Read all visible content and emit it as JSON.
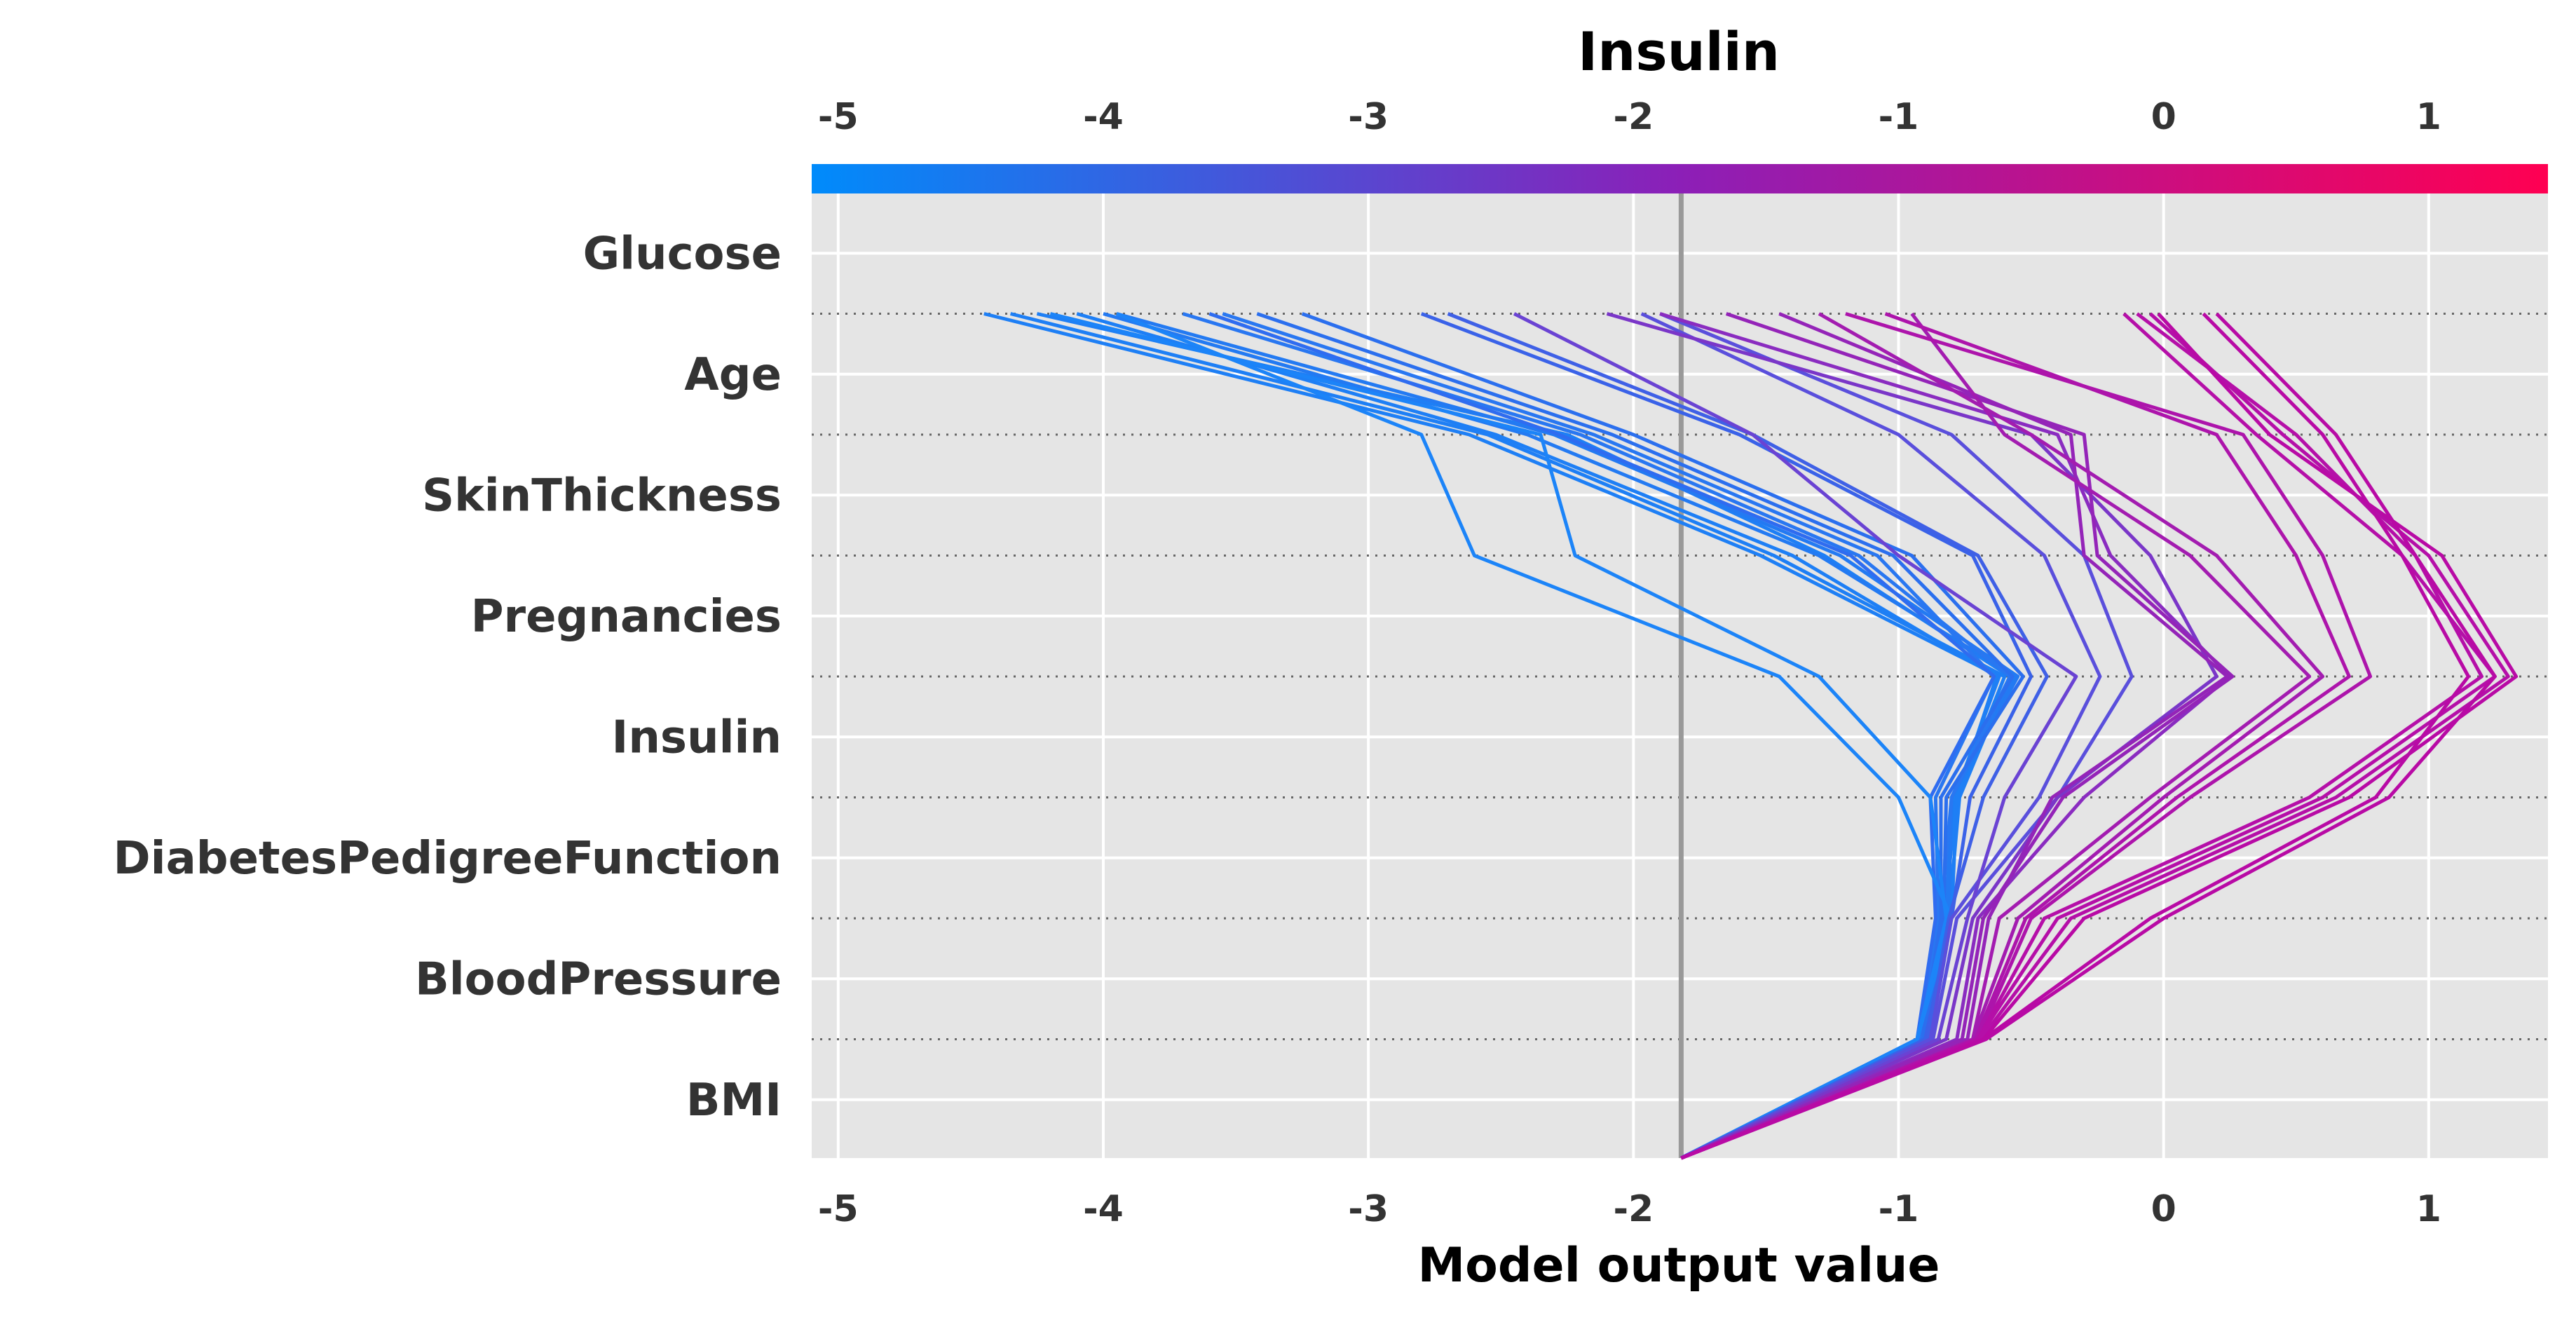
{
  "chart_data": {
    "type": "line",
    "subtype": "decision_plot",
    "title": "Insulin",
    "xlabel": "Model output value",
    "features": [
      "Glucose",
      "Age",
      "SkinThickness",
      "Pregnancies",
      "Insulin",
      "DiabetesPedigreeFunction",
      "BloodPressure",
      "BMI"
    ],
    "xlim": [
      -5.1,
      1.45
    ],
    "xticks": [
      -5,
      -4,
      -3,
      -2,
      -1,
      0,
      1
    ],
    "base_value": -1.82,
    "grid": true,
    "colormap": {
      "low": "#008bfb",
      "mid": "#8c1fb7",
      "high": "#ff0052"
    },
    "series": [
      {
        "color": "#1e7ff5",
        "values": [
          -1.82,
          -0.93,
          -0.8,
          -0.78,
          -0.6,
          -1.47,
          -2.55,
          -4.35
        ]
      },
      {
        "color": "#1e7ff5",
        "values": [
          -1.82,
          -0.93,
          -0.82,
          -0.79,
          -0.62,
          -1.52,
          -2.62,
          -4.45
        ]
      },
      {
        "color": "#1e7ff5",
        "values": [
          -1.82,
          -0.92,
          -0.81,
          -0.77,
          -0.58,
          -1.28,
          -2.25,
          -4.25
        ]
      },
      {
        "color": "#1e7ff5",
        "values": [
          -1.82,
          -0.92,
          -0.83,
          -0.78,
          -0.63,
          -1.4,
          -2.52,
          -4.1
        ]
      },
      {
        "color": "#237af2",
        "values": [
          -1.82,
          -0.91,
          -0.81,
          -0.8,
          -0.56,
          -1.3,
          -2.4,
          -4.0
        ]
      },
      {
        "color": "#237af2",
        "values": [
          -1.82,
          -0.91,
          -0.82,
          -0.8,
          -0.55,
          -1.22,
          -2.3,
          -3.95
        ]
      },
      {
        "color": "#2977f1",
        "values": [
          -1.82,
          -0.9,
          -0.84,
          -0.8,
          -0.58,
          -1.15,
          -2.2,
          -3.7
        ]
      },
      {
        "color": "#2977f1",
        "values": [
          -1.82,
          -0.92,
          -0.85,
          -0.86,
          -0.64,
          -1.08,
          -2.15,
          -3.55
        ]
      },
      {
        "color": "#2b6fee",
        "values": [
          -1.82,
          -0.9,
          -0.83,
          -0.82,
          -0.53,
          -0.95,
          -2.0,
          -3.25
        ]
      },
      {
        "color": "#2b6fee",
        "values": [
          -1.82,
          -0.91,
          -0.84,
          -0.84,
          -0.57,
          -1.02,
          -2.08,
          -3.42
        ]
      },
      {
        "color": "#2f6cf0",
        "values": [
          -1.82,
          -0.93,
          -0.86,
          -0.88,
          -0.64,
          -1.18,
          -2.28,
          -3.6
        ]
      },
      {
        "color": "#1c84f8",
        "values": [
          -1.82,
          -0.93,
          -0.8,
          -1.0,
          -1.45,
          -2.6,
          -2.8,
          -3.95
        ]
      },
      {
        "color": "#1c84f8",
        "values": [
          -1.82,
          -0.93,
          -0.82,
          -0.88,
          -1.3,
          -2.22,
          -2.35,
          -4.2
        ]
      },
      {
        "color": "#3a62e8",
        "values": [
          -1.82,
          -0.9,
          -0.8,
          -0.73,
          -0.5,
          -0.72,
          -1.6,
          -2.8
        ]
      },
      {
        "color": "#3f60e6",
        "values": [
          -1.82,
          -0.89,
          -0.81,
          -0.68,
          -0.44,
          -0.7,
          -1.55,
          -2.7
        ]
      },
      {
        "color": "#5a4fdc",
        "values": [
          -1.82,
          -0.88,
          -0.8,
          -0.47,
          -0.24,
          -0.45,
          -1.0,
          -1.97
        ]
      },
      {
        "color": "#5a4fdc",
        "values": [
          -1.82,
          -0.87,
          -0.78,
          -0.4,
          -0.12,
          -0.3,
          -0.8,
          -1.9
        ]
      },
      {
        "color": "#6a43d3",
        "values": [
          -1.82,
          -0.85,
          -0.74,
          -0.6,
          -0.33,
          -1.0,
          -1.55,
          -2.45
        ]
      },
      {
        "color": "#7a36c8",
        "values": [
          -1.82,
          -0.82,
          -0.72,
          -0.4,
          0.2,
          -0.05,
          -0.5,
          -2.1
        ]
      },
      {
        "color": "#8a2cc0",
        "values": [
          -1.82,
          -0.78,
          -0.7,
          -0.3,
          0.25,
          -0.2,
          -0.4,
          -1.9
        ]
      },
      {
        "color": "#9424b8",
        "values": [
          -1.82,
          -0.76,
          -0.68,
          -0.38,
          0.26,
          -0.25,
          -0.3,
          -1.65
        ]
      },
      {
        "color": "#9424b8",
        "values": [
          -1.82,
          -0.74,
          -0.66,
          -0.42,
          0.24,
          -0.3,
          -0.35,
          -1.45
        ]
      },
      {
        "color": "#a31cb0",
        "values": [
          -1.82,
          -0.72,
          -0.62,
          -0.05,
          0.55,
          0.1,
          -0.6,
          -0.95
        ]
      },
      {
        "color": "#a31cb0",
        "values": [
          -1.82,
          -0.72,
          -0.55,
          0.0,
          0.6,
          0.2,
          -0.5,
          -1.3
        ]
      },
      {
        "color": "#ad14ab",
        "values": [
          -1.82,
          -0.7,
          -0.5,
          0.1,
          0.78,
          0.6,
          0.3,
          -1.2
        ]
      },
      {
        "color": "#ad14ab",
        "values": [
          -1.82,
          -0.71,
          -0.52,
          0.05,
          0.7,
          0.5,
          0.2,
          -1.05
        ]
      },
      {
        "color": "#b50fa8",
        "values": [
          -1.82,
          -0.7,
          -0.45,
          0.55,
          1.2,
          0.95,
          0.5,
          -0.1
        ]
      },
      {
        "color": "#b50fa8",
        "values": [
          -1.82,
          -0.7,
          -0.4,
          0.6,
          1.25,
          0.9,
          0.35,
          -0.15
        ]
      },
      {
        "color": "#b50fa8",
        "values": [
          -1.82,
          -0.69,
          -0.35,
          0.65,
          1.3,
          1.0,
          0.45,
          -0.05
        ]
      },
      {
        "color": "#b80aa5",
        "values": [
          -1.82,
          -0.68,
          -0.3,
          0.7,
          1.33,
          1.05,
          0.4,
          -0.02
        ]
      },
      {
        "color": "#b80aa5",
        "values": [
          -1.82,
          -0.68,
          -0.05,
          0.8,
          1.15,
          0.9,
          0.6,
          0.15
        ]
      },
      {
        "color": "#b80aa5",
        "values": [
          -1.82,
          -0.67,
          0.0,
          0.85,
          1.25,
          0.95,
          0.65,
          0.2
        ]
      }
    ]
  }
}
